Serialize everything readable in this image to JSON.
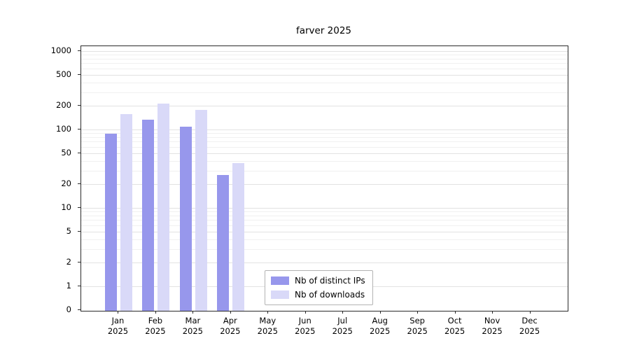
{
  "chart_data": {
    "type": "bar",
    "title": "farver 2025",
    "categories": [
      "Jan 2025",
      "Feb 2025",
      "Mar 2025",
      "Apr 2025",
      "May 2025",
      "Jun 2025",
      "Jul 2025",
      "Aug 2025",
      "Sep 2025",
      "Oct 2025",
      "Nov 2025",
      "Dec 2025"
    ],
    "series": [
      {
        "name": "Nb of distinct IPs",
        "color": "#9797ec",
        "values": [
          90,
          135,
          110,
          27,
          0,
          0,
          0,
          0,
          0,
          0,
          0,
          0
        ]
      },
      {
        "name": "Nb of downloads",
        "color": "#d9d9f8",
        "values": [
          160,
          220,
          180,
          38,
          0,
          0,
          0,
          0,
          0,
          0,
          0,
          0
        ]
      }
    ],
    "y_ticks": [
      0,
      1,
      2,
      5,
      10,
      20,
      50,
      100,
      200,
      500,
      1000
    ],
    "y_minor_ticks": [
      3,
      4,
      6,
      7,
      8,
      9,
      30,
      40,
      60,
      70,
      80,
      90,
      300,
      400,
      600,
      700,
      800,
      900
    ],
    "y_scale": "log",
    "ylim": [
      0,
      1000
    ],
    "xlabel": "",
    "ylabel": "",
    "grid": "horizontal",
    "legend_position": "inside lower center"
  },
  "colors": {
    "major_gridline": "#e2e2e2",
    "minor_gridline": "#f0f0f0",
    "axis": "#2b2b2b"
  }
}
